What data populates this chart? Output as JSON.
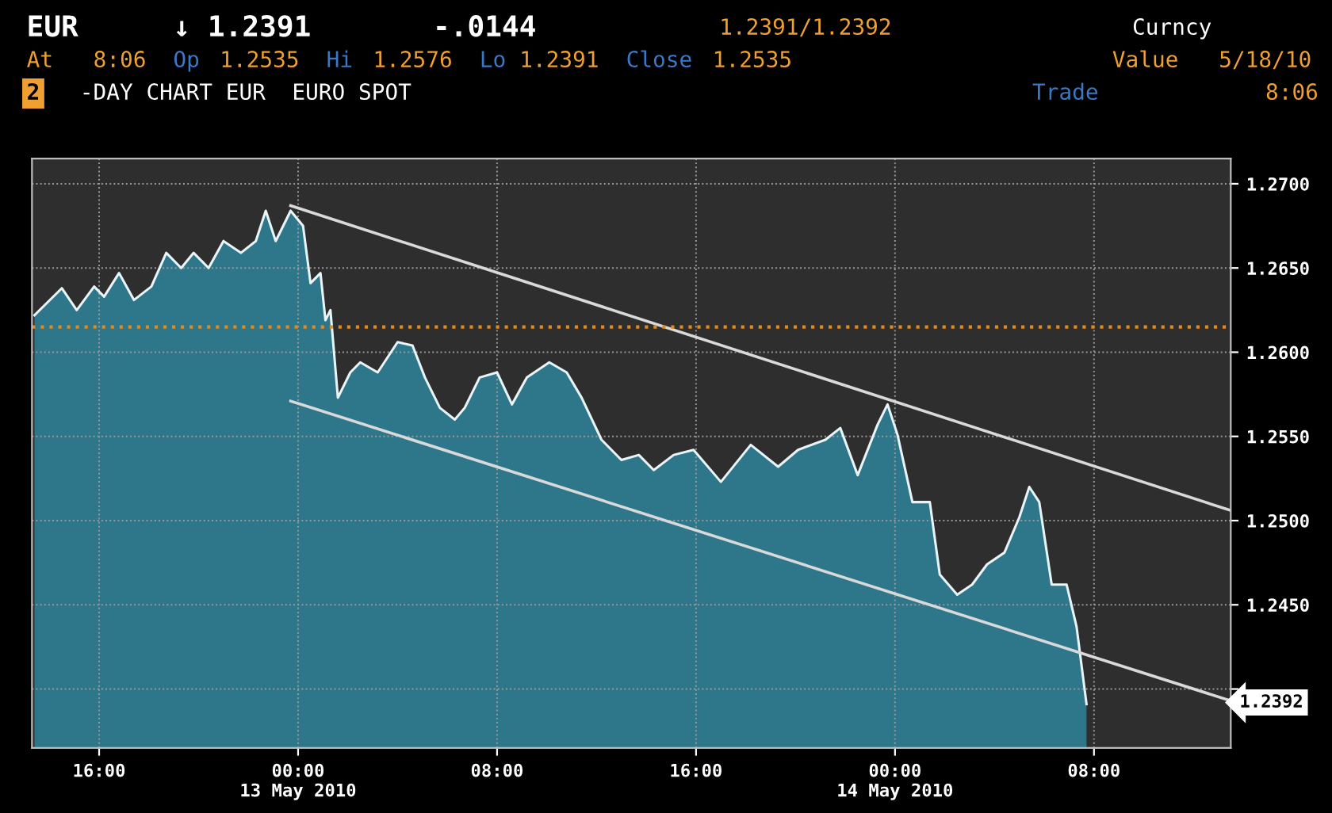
{
  "chart_data": {
    "type": "area",
    "annotations": [
      "EUR",
      "↓ 1.2391",
      "-.0144",
      "1.2391/1.2392",
      "Curncy",
      "At",
      "8:06",
      "Op",
      "1.2535",
      "Hi",
      "1.2576",
      "Lo",
      "1.2391",
      "Close",
      "1.2535",
      "Value",
      "5/18/10",
      "2",
      "-DAY CHART EUR  EURO SPOT",
      "Trade",
      "8:06",
      {
        "text": "1.2392",
        "x": "2010-05-14T13:30",
        "y": 1.2392
      }
    ],
    "series": [
      {
        "color": "#2f8fa8",
        "x": [
          "2010-05-12T13:24",
          "2010-05-12T14:30",
          "2010-05-12T15:06",
          "2010-05-12T15:48",
          "2010-05-12T16:12",
          "2010-05-12T16:48",
          "2010-05-12T17:24",
          "2010-05-12T18:06",
          "2010-05-12T18:42",
          "2010-05-12T19:18",
          "2010-05-12T19:48",
          "2010-05-12T20:24",
          "2010-05-12T21:00",
          "2010-05-12T21:42",
          "2010-05-12T22:18",
          "2010-05-12T22:42",
          "2010-05-12T23:06",
          "2010-05-12T23:42",
          "2010-05-13T00:12",
          "2010-05-13T00:30",
          "2010-05-13T00:54",
          "2010-05-13T01:06",
          "2010-05-13T01:18",
          "2010-05-13T01:36",
          "2010-05-13T02:06",
          "2010-05-13T02:30",
          "2010-05-13T03:12",
          "2010-05-13T04:00",
          "2010-05-13T04:36",
          "2010-05-13T05:06",
          "2010-05-13T05:42",
          "2010-05-13T06:18",
          "2010-05-13T06:42",
          "2010-05-13T07:18",
          "2010-05-13T08:00",
          "2010-05-13T08:36",
          "2010-05-13T09:12",
          "2010-05-13T10:06",
          "2010-05-13T10:48",
          "2010-05-13T11:24",
          "2010-05-13T12:12",
          "2010-05-13T13:00",
          "2010-05-13T13:42",
          "2010-05-13T14:18",
          "2010-05-13T15:06",
          "2010-05-13T15:54",
          "2010-05-13T17:00",
          "2010-05-13T18:12",
          "2010-05-13T19:18",
          "2010-05-13T20:06",
          "2010-05-13T21:12",
          "2010-05-13T21:48",
          "2010-05-13T22:30",
          "2010-05-13T23:18",
          "2010-05-13T23:42",
          "2010-05-14T00:06",
          "2010-05-14T00:42",
          "2010-05-14T01:24",
          "2010-05-14T01:48",
          "2010-05-14T02:30",
          "2010-05-14T03:06",
          "2010-05-14T03:42",
          "2010-05-14T04:24",
          "2010-05-14T05:00",
          "2010-05-14T05:24",
          "2010-05-14T05:48",
          "2010-05-14T06:18",
          "2010-05-14T06:54",
          "2010-05-14T07:18",
          "2010-05-14T07:42"
        ],
        "values": [
          1.2622,
          1.2638,
          1.2625,
          1.2639,
          1.2633,
          1.2647,
          1.2631,
          1.2639,
          1.2659,
          1.265,
          1.2659,
          1.265,
          1.2666,
          1.2659,
          1.2666,
          1.2684,
          1.2666,
          1.2684,
          1.2675,
          1.2641,
          1.2647,
          1.2619,
          1.2625,
          1.2573,
          1.2588,
          1.2594,
          1.2588,
          1.2606,
          1.2604,
          1.2585,
          1.2567,
          1.256,
          1.2567,
          1.2585,
          1.2588,
          1.2569,
          1.2585,
          1.2594,
          1.2588,
          1.2573,
          1.2548,
          1.2536,
          1.2539,
          1.253,
          1.2539,
          1.2542,
          1.2523,
          1.2545,
          1.2532,
          1.2542,
          1.2548,
          1.2555,
          1.2527,
          1.2557,
          1.2569,
          1.2551,
          1.2511,
          1.2511,
          1.2468,
          1.2456,
          1.2462,
          1.2474,
          1.2481,
          1.2502,
          1.252,
          1.2511,
          1.2462,
          1.2462,
          1.2437,
          1.2391
        ]
      },
      {
        "type": "line",
        "color": "#d9d9d9",
        "x": [
          "2010-05-12T23:42",
          "2010-05-14T13:30"
        ],
        "values": [
          1.2687,
          1.2506
        ]
      },
      {
        "type": "line",
        "color": "#d9d9d9",
        "x": [
          "2010-05-12T23:42",
          "2010-05-14T13:30"
        ],
        "values": [
          1.2571,
          1.2393
        ]
      }
    ],
    "ref_lines": [
      {
        "axis": "y",
        "value": 1.2615,
        "color": "#e08a1e",
        "line_style": "dotted"
      }
    ],
    "xlim": [
      "2010-05-12T13:18",
      "2010-05-14T13:30"
    ],
    "xticks": [
      {
        "value": "2010-05-12T16:00",
        "label": "16:00"
      },
      {
        "value": "2010-05-13T00:00",
        "label": "00:00\n13 May 2010"
      },
      {
        "value": "2010-05-13T08:00",
        "label": "08:00"
      },
      {
        "value": "2010-05-13T16:00",
        "label": "16:00"
      },
      {
        "value": "2010-05-14T00:00",
        "label": "00:00\n14 May 2010"
      },
      {
        "value": "2010-05-14T08:00",
        "label": "08:00"
      }
    ],
    "ylim": [
      1.2365,
      1.2715
    ],
    "yticks": [
      {
        "value": 1.24,
        "label": null
      },
      {
        "value": 1.245,
        "label": "1.2450"
      },
      {
        "value": 1.25,
        "label": "1.2500"
      },
      {
        "value": 1.255,
        "label": "1.2550"
      },
      {
        "value": 1.26,
        "label": "1.2600"
      },
      {
        "value": 1.265,
        "label": "1.2650"
      },
      {
        "value": 1.27,
        "label": "1.2700"
      }
    ],
    "grid": true,
    "legend": false
  }
}
